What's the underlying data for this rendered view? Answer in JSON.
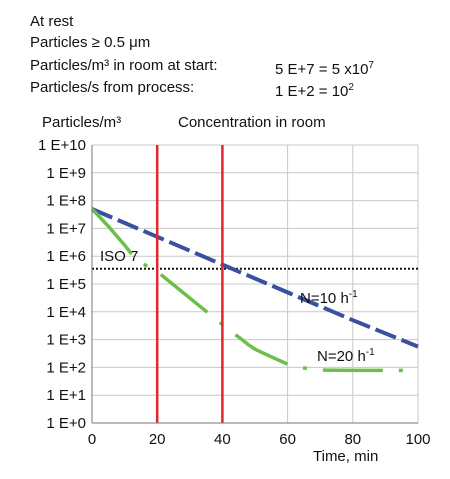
{
  "header": {
    "line1": "At rest",
    "line2": "Particles ≥ 0.5 μm",
    "line3_label": "Particles/m³ in room at start:",
    "line3_value": "5 E+7 = 5 x10",
    "line3_exp": "7",
    "line4_label": "Particles/s from process:",
    "line4_value": "1 E+2 = 10",
    "line4_exp": "2"
  },
  "colors": {
    "n10": "#3a50a0",
    "n20": "#6cbf4a",
    "marker": "#e0262e",
    "grid": "#c8c8c8",
    "iso": "#111111"
  },
  "chart_data": {
    "type": "line",
    "title": "Concentration in room",
    "ylabel": "Particles/m³",
    "xlabel": "Time, min",
    "xlim": [
      0,
      100
    ],
    "ylim": [
      1,
      10000000000
    ],
    "yscale": "log",
    "xticks": [
      "0",
      "20",
      "40",
      "60",
      "80",
      "100"
    ],
    "yticks": [
      "1 E+0",
      "1 E+1",
      "1 E+2",
      "1 E+3",
      "1 E+4",
      "1 E+5",
      "1 E+6",
      "1 E+7",
      "1 E+8",
      "1 E+9",
      "1 E+10"
    ],
    "grid": true,
    "vertical_markers": [
      20,
      40
    ],
    "iso_line": {
      "label": "ISO 7",
      "y": 352000
    },
    "series": [
      {
        "name": "N=10 h",
        "name_sup": "-1",
        "style": "dashed",
        "x": [
          0,
          20,
          40,
          60,
          80,
          100
        ],
        "y": [
          50000000,
          5000000,
          500000,
          50000,
          5000,
          560
        ]
      },
      {
        "name": "N=20 h",
        "name_sup": "-1",
        "style": "dashed-sparse",
        "x": [
          0,
          5,
          10,
          13,
          18,
          20,
          40,
          42,
          44,
          46,
          48,
          50,
          55,
          60,
          65,
          70,
          80,
          90,
          100
        ],
        "y": [
          50000000,
          12000000,
          2500000,
          900000,
          350000,
          280000,
          3500,
          2200,
          1500,
          1000,
          650,
          450,
          240,
          130,
          95,
          80,
          78,
          78,
          78
        ]
      }
    ]
  }
}
